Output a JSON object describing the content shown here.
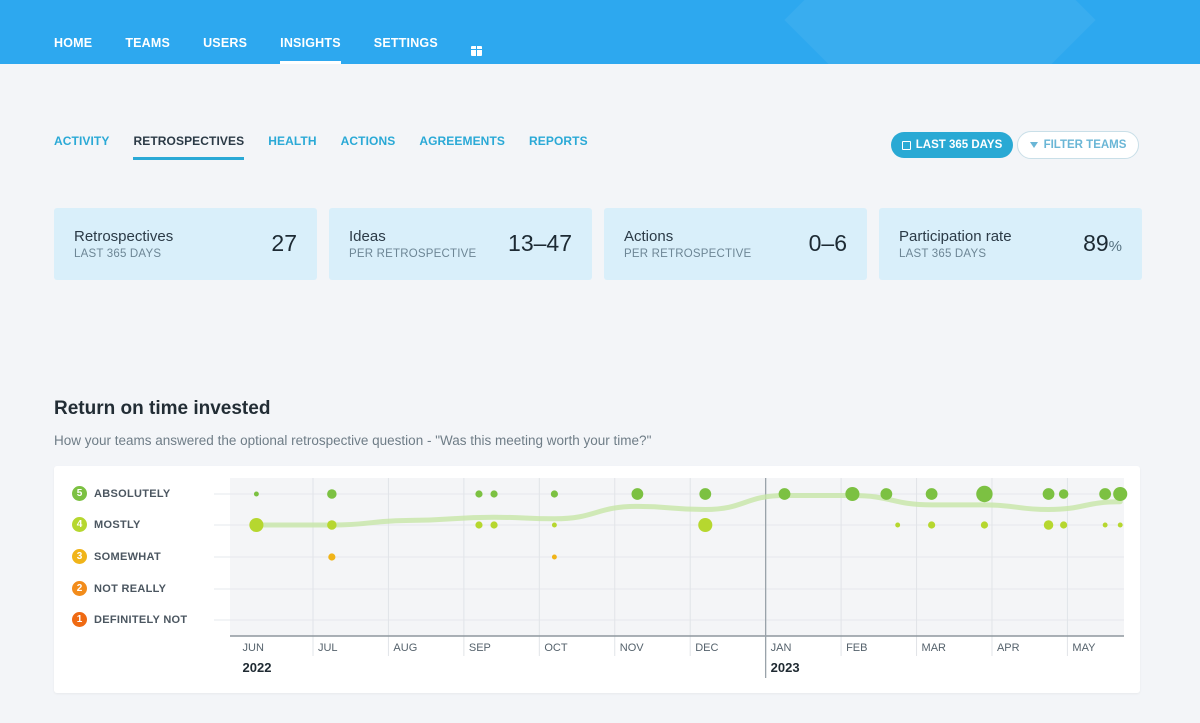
{
  "nav": {
    "items": [
      {
        "label": "HOME",
        "active": false
      },
      {
        "label": "TEAMS",
        "active": false
      },
      {
        "label": "USERS",
        "active": false
      },
      {
        "label": "INSIGHTS",
        "active": true
      },
      {
        "label": "SETTINGS",
        "active": false
      }
    ],
    "gift_icon": "gift-icon"
  },
  "subnav": {
    "tabs": [
      {
        "label": "ACTIVITY",
        "active": false
      },
      {
        "label": "RETROSPECTIVES",
        "active": true
      },
      {
        "label": "HEALTH",
        "active": false
      },
      {
        "label": "ACTIONS",
        "active": false
      },
      {
        "label": "AGREEMENTS",
        "active": false
      },
      {
        "label": "REPORTS",
        "active": false
      }
    ]
  },
  "buttons": {
    "range_label": "LAST 365 DAYS",
    "filter_label": "FILTER TEAMS"
  },
  "cards": [
    {
      "title": "Retrospectives",
      "subtitle": "LAST 365 DAYS",
      "value": "27",
      "suffix": ""
    },
    {
      "title": "Ideas",
      "subtitle": "PER RETROSPECTIVE",
      "value": "13–47",
      "suffix": ""
    },
    {
      "title": "Actions",
      "subtitle": "PER RETROSPECTIVE",
      "value": "0–6",
      "suffix": ""
    },
    {
      "title": "Participation rate",
      "subtitle": "LAST 365 DAYS",
      "value": "89",
      "suffix": "%"
    }
  ],
  "section": {
    "title": "Return on time invested",
    "subtitle": "How your teams answered the optional retrospective question - \"Was this meeting worth your time?\""
  },
  "colors": {
    "primary": "#2da8ef",
    "accent": "#29a9d4",
    "card_bg": "#d9effa",
    "trend": "#c7e6a6"
  },
  "chart_data": {
    "type": "scatter",
    "legend": [
      {
        "score": 5,
        "label": "ABSOLUTELY",
        "color": "#7cc142"
      },
      {
        "score": 4,
        "label": "MOSTLY",
        "color": "#b6d72f"
      },
      {
        "score": 3,
        "label": "SOMEWHAT",
        "color": "#f0b419"
      },
      {
        "score": 2,
        "label": "NOT REALLY",
        "color": "#f28c1b"
      },
      {
        "score": 1,
        "label": "DEFINITELY NOT",
        "color": "#ef6a13"
      }
    ],
    "x_range": [
      -0.1,
      11.75
    ],
    "x_ticks": [
      "JUN",
      "JUL",
      "AUG",
      "SEP",
      "OCT",
      "NOV",
      "DEC",
      "JAN",
      "FEB",
      "MAR",
      "APR",
      "MAY"
    ],
    "years": [
      {
        "label": "2022",
        "index": 0
      },
      {
        "label": "2023",
        "index": 7
      }
    ],
    "y_range": [
      1,
      5
    ],
    "points": [
      {
        "x": 0.25,
        "y": 5,
        "n": 1
      },
      {
        "x": 1.25,
        "y": 5,
        "n": 3
      },
      {
        "x": 3.2,
        "y": 5,
        "n": 2
      },
      {
        "x": 3.4,
        "y": 5,
        "n": 2
      },
      {
        "x": 4.2,
        "y": 5,
        "n": 2
      },
      {
        "x": 5.3,
        "y": 5,
        "n": 4
      },
      {
        "x": 6.2,
        "y": 5,
        "n": 4
      },
      {
        "x": 7.25,
        "y": 5,
        "n": 4
      },
      {
        "x": 8.15,
        "y": 5,
        "n": 5
      },
      {
        "x": 8.6,
        "y": 5,
        "n": 4
      },
      {
        "x": 9.2,
        "y": 5,
        "n": 4
      },
      {
        "x": 9.9,
        "y": 5,
        "n": 6
      },
      {
        "x": 10.75,
        "y": 5,
        "n": 4
      },
      {
        "x": 10.95,
        "y": 5,
        "n": 3
      },
      {
        "x": 11.5,
        "y": 5,
        "n": 4
      },
      {
        "x": 11.7,
        "y": 5,
        "n": 5
      },
      {
        "x": 0.25,
        "y": 4,
        "n": 5
      },
      {
        "x": 1.25,
        "y": 4,
        "n": 3
      },
      {
        "x": 3.2,
        "y": 4,
        "n": 2
      },
      {
        "x": 3.4,
        "y": 4,
        "n": 2
      },
      {
        "x": 4.2,
        "y": 4,
        "n": 1
      },
      {
        "x": 6.2,
        "y": 4,
        "n": 5
      },
      {
        "x": 8.75,
        "y": 4,
        "n": 1
      },
      {
        "x": 9.2,
        "y": 4,
        "n": 2
      },
      {
        "x": 9.9,
        "y": 4,
        "n": 2
      },
      {
        "x": 10.75,
        "y": 4,
        "n": 3
      },
      {
        "x": 10.95,
        "y": 4,
        "n": 2
      },
      {
        "x": 11.5,
        "y": 4,
        "n": 1
      },
      {
        "x": 11.7,
        "y": 4,
        "n": 1
      },
      {
        "x": 1.25,
        "y": 3,
        "n": 2
      },
      {
        "x": 4.2,
        "y": 3,
        "n": 1
      }
    ],
    "trend": [
      {
        "x": 0.25,
        "y": 4.0
      },
      {
        "x": 1.25,
        "y": 4.0
      },
      {
        "x": 2.3,
        "y": 4.15
      },
      {
        "x": 3.4,
        "y": 4.25
      },
      {
        "x": 4.2,
        "y": 4.2
      },
      {
        "x": 5.3,
        "y": 4.6
      },
      {
        "x": 6.2,
        "y": 4.5
      },
      {
        "x": 7.25,
        "y": 4.95
      },
      {
        "x": 8.15,
        "y": 4.95
      },
      {
        "x": 9.2,
        "y": 4.65
      },
      {
        "x": 9.9,
        "y": 4.65
      },
      {
        "x": 10.75,
        "y": 4.5
      },
      {
        "x": 11.7,
        "y": 4.75
      }
    ]
  }
}
